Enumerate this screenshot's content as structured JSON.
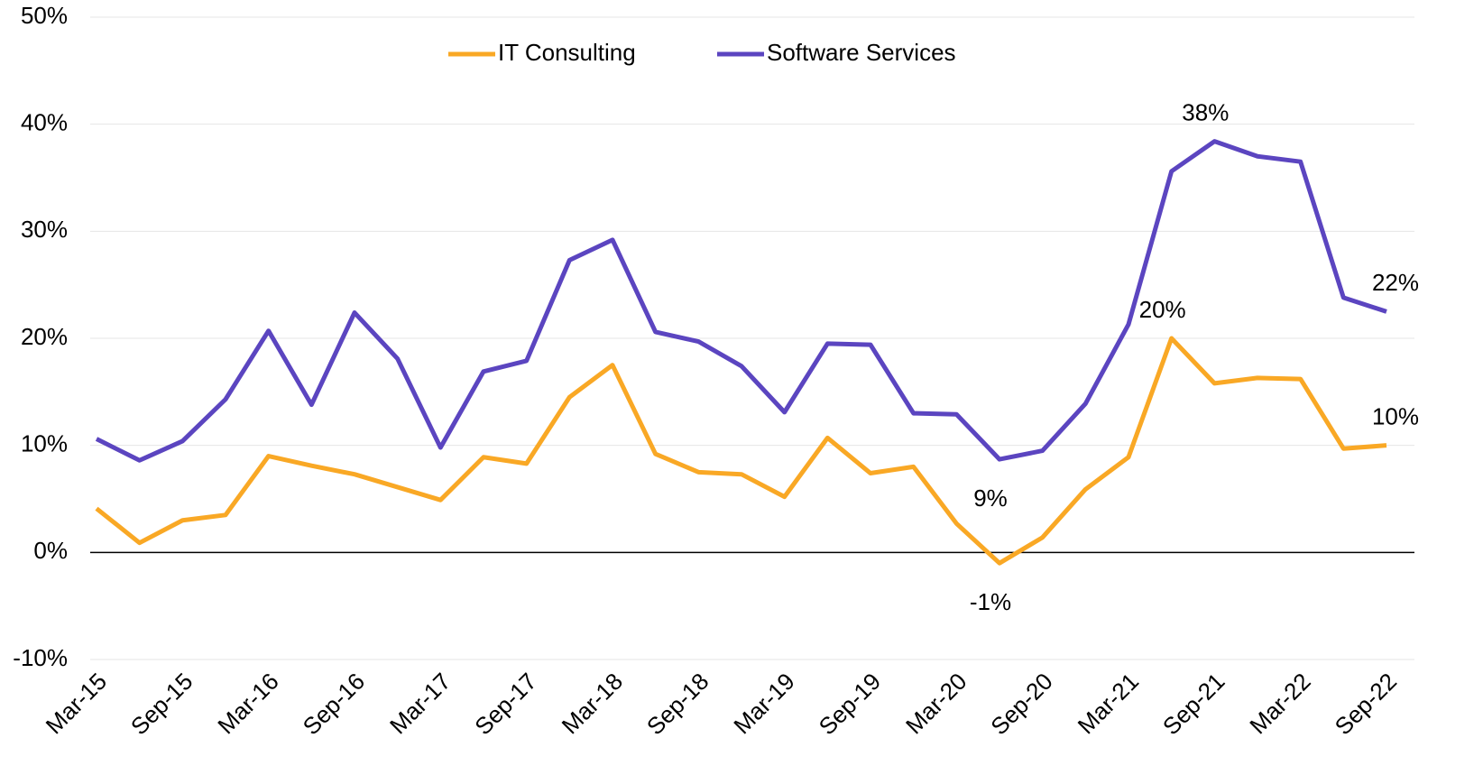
{
  "chart_data": {
    "type": "line",
    "categories": [
      "Mar-15",
      null,
      "Sep-15",
      null,
      "Mar-16",
      null,
      "Sep-16",
      null,
      "Mar-17",
      null,
      "Sep-17",
      null,
      "Mar-18",
      null,
      "Sep-18",
      null,
      "Mar-19",
      null,
      "Sep-19",
      null,
      "Mar-20",
      null,
      "Sep-20",
      null,
      "Mar-21",
      null,
      "Sep-21",
      null,
      "Mar-22",
      null,
      "Sep-22"
    ],
    "series": [
      {
        "name": "IT Consulting",
        "color": "#f9a825",
        "values": [
          4.1,
          0.9,
          3.0,
          3.5,
          9.0,
          8.1,
          7.3,
          6.1,
          4.9,
          8.9,
          8.3,
          14.5,
          17.5,
          9.2,
          7.5,
          7.3,
          5.2,
          10.7,
          7.4,
          8.0,
          2.7,
          -1.0,
          1.4,
          5.9,
          8.9,
          20.0,
          15.8,
          16.3,
          16.2,
          9.7,
          10.0
        ],
        "value_labels": [
          null,
          null,
          null,
          null,
          null,
          null,
          null,
          null,
          null,
          null,
          null,
          null,
          null,
          null,
          null,
          null,
          null,
          null,
          null,
          null,
          null,
          "-1%",
          null,
          null,
          null,
          "20%",
          null,
          null,
          null,
          null,
          "10%"
        ]
      },
      {
        "name": "Software Services",
        "color": "#5b45c0",
        "values": [
          10.6,
          8.6,
          10.4,
          14.3,
          20.7,
          13.8,
          22.4,
          18.1,
          9.8,
          16.9,
          17.9,
          27.3,
          29.2,
          20.6,
          19.7,
          17.4,
          13.1,
          19.5,
          19.4,
          13.0,
          12.9,
          8.7,
          9.5,
          13.9,
          21.3,
          35.6,
          38.4,
          37.0,
          36.5,
          23.8,
          22.5
        ],
        "value_labels": [
          null,
          null,
          null,
          null,
          null,
          null,
          null,
          null,
          null,
          null,
          null,
          null,
          null,
          null,
          null,
          null,
          null,
          null,
          null,
          null,
          null,
          "9%",
          null,
          null,
          null,
          null,
          "38%",
          null,
          null,
          null,
          "22%"
        ]
      }
    ],
    "ylim": [
      -10,
      50
    ],
    "yticks": [
      {
        "value": -10,
        "label": "-10%"
      },
      {
        "value": 0,
        "label": "0%"
      },
      {
        "value": 10,
        "label": "10%"
      },
      {
        "value": 20,
        "label": "20%"
      },
      {
        "value": 30,
        "label": "30%"
      },
      {
        "value": 40,
        "label": "40%"
      },
      {
        "value": 50,
        "label": "50%"
      }
    ],
    "grid": true,
    "legend": "top"
  }
}
